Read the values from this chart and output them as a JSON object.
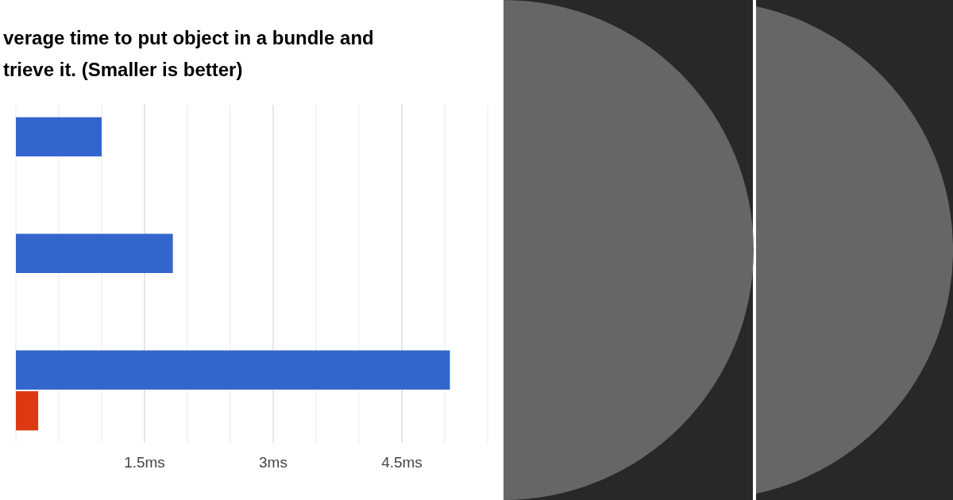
{
  "chart_data": {
    "type": "bar",
    "orientation": "horizontal",
    "title": "verage time to put object in a bundle and\ntrieve it. (Smaller is better)",
    "categories": [
      null,
      null,
      null
    ],
    "series": [
      {
        "color": "#3366cc",
        "values": [
          1.0,
          1.83,
          5.06
        ]
      },
      {
        "color": "#dc3912",
        "values": [
          null,
          null,
          0.26
        ]
      }
    ],
    "xlim": [
      0,
      5.5
    ],
    "xticks": [
      {
        "value": 0,
        "label": null
      },
      {
        "value": 0.5,
        "label": null
      },
      {
        "value": 1,
        "label": null
      },
      {
        "value": 1.5,
        "label": "1.5ms"
      },
      {
        "value": 2,
        "label": null
      },
      {
        "value": 2.5,
        "label": null
      },
      {
        "value": 3,
        "label": "3ms"
      },
      {
        "value": 3.5,
        "label": null
      },
      {
        "value": 4,
        "label": null
      },
      {
        "value": 4.5,
        "label": "4.5ms"
      },
      {
        "value": 5,
        "label": null
      },
      {
        "value": 5.5,
        "label": null
      }
    ],
    "grid": "x"
  }
}
